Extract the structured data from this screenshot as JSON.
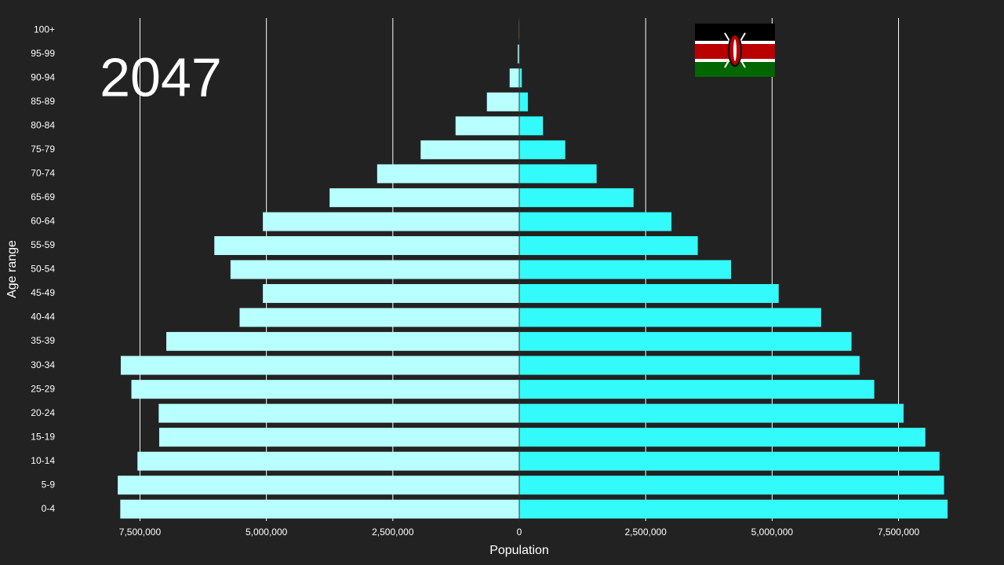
{
  "chart_data": {
    "type": "pyramid",
    "title": "2047",
    "x_label": "Population",
    "y_label": "Age range",
    "categories": [
      "0-4",
      "5-9",
      "10-14",
      "15-19",
      "20-24",
      "25-29",
      "30-34",
      "35-39",
      "40-44",
      "45-49",
      "50-54",
      "55-59",
      "60-64",
      "65-69",
      "70-74",
      "75-79",
      "80-84",
      "85-89",
      "90-94",
      "95-99",
      "100+"
    ],
    "series": [
      {
        "color": "#b8ffff",
        "values": [
          7890000,
          7940000,
          7550000,
          7120000,
          7130000,
          7670000,
          7880000,
          6980000,
          5530000,
          5070000,
          5710000,
          6030000,
          5070000,
          3750000,
          2810000,
          1950000,
          1260000,
          640000,
          190000,
          30000,
          10000
        ]
      },
      {
        "color": "#33fbfb",
        "values": [
          8470000,
          8400000,
          8310000,
          8030000,
          7600000,
          7020000,
          6730000,
          6570000,
          5970000,
          5130000,
          4190000,
          3530000,
          3010000,
          2260000,
          1530000,
          910000,
          470000,
          170000,
          50000,
          10000,
          3000
        ]
      }
    ],
    "xlim": [
      -8500000,
      8500000
    ],
    "xticks": [
      {
        "value": -7500000,
        "label": "7,500,000"
      },
      {
        "value": -5000000,
        "label": "5,000,000"
      },
      {
        "value": -2500000,
        "label": "2,500,000"
      },
      0,
      {
        "value": 2500000,
        "label": "2,500,000"
      },
      {
        "value": 5000000,
        "label": "5,000,000"
      },
      {
        "value": 7500000,
        "label": "7,500,000"
      }
    ],
    "grid": true
  }
}
